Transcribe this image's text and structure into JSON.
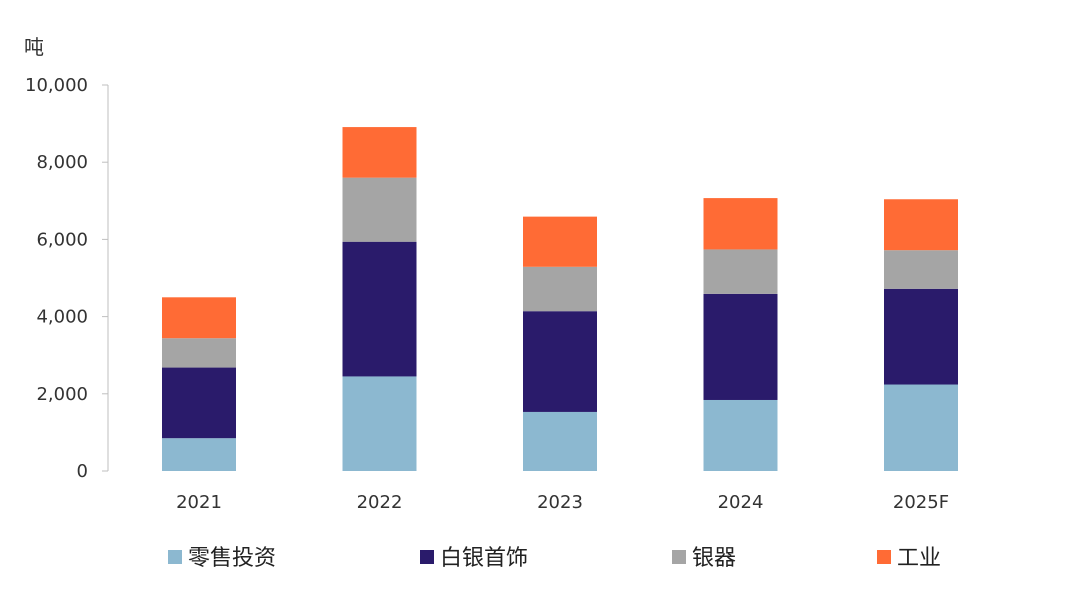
{
  "chart_data": {
    "type": "bar",
    "stacked": true,
    "unit_label": "吨",
    "categories": [
      "2021",
      "2022",
      "2023",
      "2024",
      "2025F"
    ],
    "series": [
      {
        "name": "零售投资",
        "color": "#8CB8D0",
        "values": [
          850,
          2450,
          1530,
          1840,
          2240
        ]
      },
      {
        "name": "白银首饰",
        "color": "#2A1B6B",
        "values": [
          1830,
          3490,
          2610,
          2750,
          2480
        ]
      },
      {
        "name": "银器",
        "color": "#A5A5A5",
        "values": [
          760,
          1660,
          1150,
          1150,
          1000
        ]
      },
      {
        "name": "工业",
        "color": "#FF6B35",
        "values": [
          1060,
          1310,
          1300,
          1330,
          1320
        ]
      }
    ],
    "ylim": [
      0,
      10000
    ],
    "yticks": [
      0,
      2000,
      4000,
      6000,
      8000,
      10000
    ],
    "ytick_labels": [
      "0",
      "2,000",
      "4,000",
      "6,000",
      "8,000",
      "10,000"
    ],
    "grid": false,
    "legend_position": "bottom"
  }
}
